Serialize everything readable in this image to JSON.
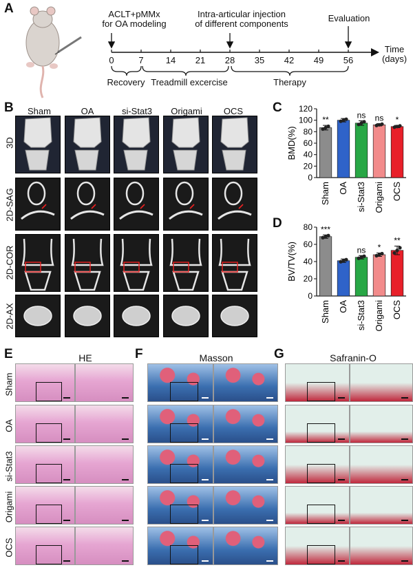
{
  "panels": {
    "A": "A",
    "B": "B",
    "C": "C",
    "D": "D",
    "E": "E",
    "F": "F",
    "G": "G"
  },
  "timeline": {
    "label_modeling": "ACLT+pMMx\nfor OA modeling",
    "label_injection": "Intra-articular injection\nof different components",
    "label_evaluation": "Evaluation",
    "axis_title": "Time\n(days)",
    "ticks": [
      "0",
      "7",
      "14",
      "21",
      "28",
      "35",
      "42",
      "49",
      "56"
    ],
    "phase_recovery": "Recovery",
    "phase_treadmill": "Treadmill excercise",
    "phase_therapy": "Therapy"
  },
  "ct": {
    "columns": [
      "Sham",
      "OA",
      "si-Stat3",
      "Origami",
      "OCS"
    ],
    "rows": [
      "3D",
      "2D-SAG",
      "2D-COR",
      "2D-AX"
    ]
  },
  "colors": {
    "Sham": "#8c8c8c",
    "OA": "#2f63c9",
    "si-Stat3": "#28a745",
    "Origami": "#f28b8b",
    "OCS": "#e8202a",
    "he_pink": "#e6a6d2",
    "masson_blue": "#3b6fb0",
    "safranin_red": "#c0283c",
    "safranin_bg": "#e2efea"
  },
  "chart_data": [
    {
      "type": "bar",
      "panel": "C",
      "categories": [
        "Sham",
        "OA",
        "si-Stat3",
        "Origami",
        "OCS"
      ],
      "values": [
        87,
        100,
        95,
        92,
        89
      ],
      "errors": [
        4,
        3,
        4,
        2,
        2
      ],
      "significance": [
        "**",
        "",
        "ns",
        "ns",
        "*"
      ],
      "ylabel": "BMD(%)",
      "ylim": [
        0,
        120
      ],
      "yticks": [
        "0",
        "20",
        "40",
        "60",
        "80",
        "100",
        "120"
      ]
    },
    {
      "type": "bar",
      "panel": "D",
      "categories": [
        "Sham",
        "OA",
        "si-Stat3",
        "Origami",
        "OCS"
      ],
      "values": [
        69,
        41,
        45,
        48,
        53
      ],
      "errors": [
        2,
        2,
        2,
        2,
        5
      ],
      "significance": [
        "***",
        "",
        "ns",
        "*",
        "**"
      ],
      "ylabel": "BV/TV(%)",
      "ylim": [
        0,
        80
      ],
      "yticks": [
        "0",
        "20",
        "40",
        "60",
        "80"
      ]
    }
  ],
  "histology": {
    "stains": [
      "HE",
      "Masson",
      "Safranin-O"
    ],
    "rows": [
      "Sham",
      "OA",
      "si-Stat3",
      "Origami",
      "OCS"
    ]
  }
}
